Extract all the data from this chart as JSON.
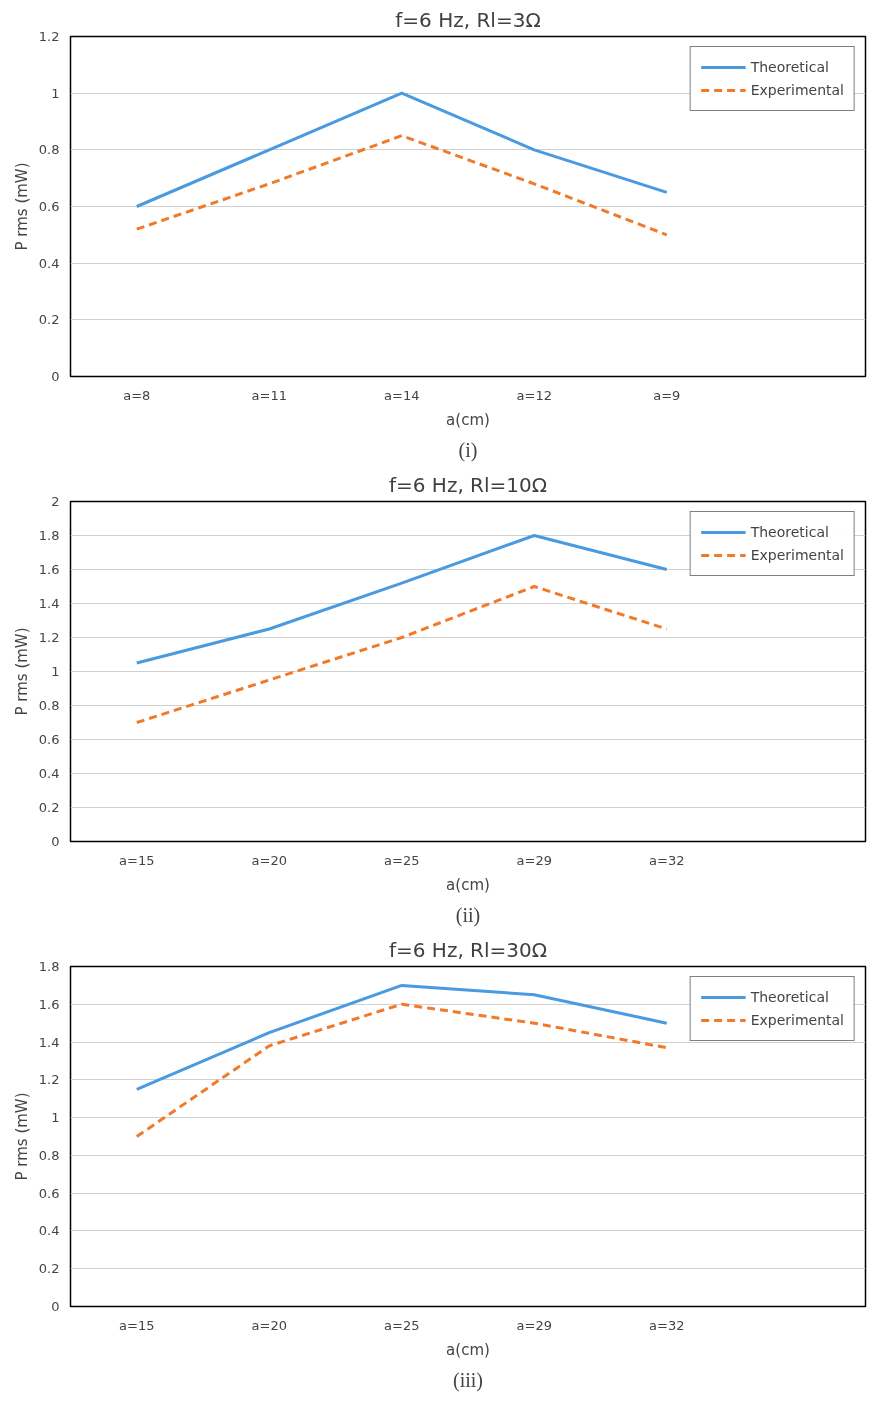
{
  "chart_data": [
    {
      "type": "line",
      "title": "f=6 Hz, Rl=3Ω",
      "xlabel": "a(cm)",
      "ylabel": "P rms (mW)",
      "annotations": [
        "(i)"
      ],
      "categories": [
        "a=8",
        "a=11",
        "a=14",
        "a=12",
        "a=9",
        null
      ],
      "series": [
        {
          "name": "Theoretical",
          "color": "#4a9ae0",
          "line_style": "solid",
          "values": [
            0.6,
            0.8,
            1.0,
            0.8,
            0.65,
            null
          ]
        },
        {
          "name": "Experimental",
          "color": "#f07a2a",
          "line_style": "dashed",
          "values": [
            0.52,
            0.68,
            0.85,
            0.68,
            0.5,
            null
          ]
        }
      ],
      "ylim": [
        0,
        1.2
      ],
      "yticks": [
        0,
        0.2,
        0.4,
        0.6,
        0.8,
        1,
        1.2
      ],
      "grid": "y",
      "legend": "top right",
      "marker": "none"
    },
    {
      "type": "line",
      "title": "f=6 Hz, Rl=10Ω",
      "xlabel": "a(cm)",
      "ylabel": "P rms (mW)",
      "annotations": [
        "(ii)"
      ],
      "categories": [
        "a=15",
        "a=20",
        "a=25",
        "a=29",
        "a=32",
        null
      ],
      "series": [
        {
          "name": "Theoretical",
          "color": "#4a9ae0",
          "line_style": "solid",
          "values": [
            1.05,
            1.25,
            1.52,
            1.8,
            1.6,
            null
          ]
        },
        {
          "name": "Experimental",
          "color": "#f07a2a",
          "line_style": "dashed",
          "values": [
            0.7,
            0.95,
            1.2,
            1.5,
            1.25,
            null
          ]
        }
      ],
      "ylim": [
        0,
        2
      ],
      "yticks": [
        0,
        0.2,
        0.4,
        0.6,
        0.8,
        1,
        1.2,
        1.4,
        1.6,
        1.8,
        2
      ],
      "grid": "y",
      "legend": "top right",
      "marker": "none"
    },
    {
      "type": "line",
      "title": "f=6 Hz, Rl=30Ω",
      "xlabel": "a(cm)",
      "ylabel": "P rms (mW)",
      "annotations": [
        "(iii)"
      ],
      "categories": [
        "a=15",
        "a=20",
        "a=25",
        "a=29",
        "a=32",
        null
      ],
      "series": [
        {
          "name": "Theoretical",
          "color": "#4a9ae0",
          "line_style": "solid",
          "values": [
            1.15,
            1.45,
            1.7,
            1.65,
            1.5,
            null
          ]
        },
        {
          "name": "Experimental",
          "color": "#f07a2a",
          "line_style": "dashed",
          "values": [
            0.9,
            1.38,
            1.6,
            1.5,
            1.37,
            null
          ]
        }
      ],
      "ylim": [
        0,
        1.8
      ],
      "yticks": [
        0,
        0.2,
        0.4,
        0.6,
        0.8,
        1,
        1.2,
        1.4,
        1.6,
        1.8
      ],
      "grid": "y",
      "legend": "top right",
      "marker": "none"
    }
  ]
}
